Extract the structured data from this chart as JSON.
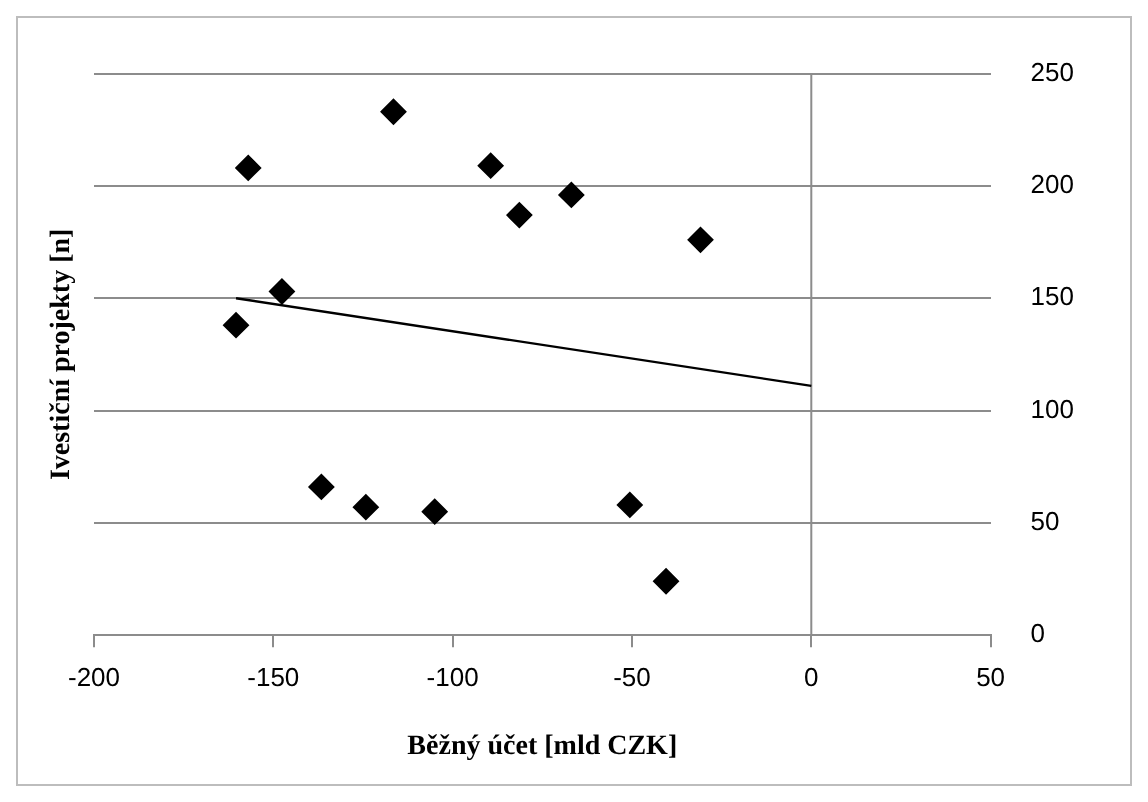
{
  "chart_data": {
    "type": "scatter",
    "xlabel": "Běžný účet [mld CZK]",
    "ylabel": "Ivestiční projekty [n]",
    "xlim": [
      -200,
      50
    ],
    "xticks": [
      -200,
      -150,
      -100,
      -50,
      0,
      50
    ],
    "ylim": [
      0,
      250
    ],
    "yticks": [
      0,
      50,
      100,
      150,
      200,
      250
    ],
    "grid": "y",
    "legend": false,
    "marker": "diamond",
    "ref_lines": [
      {
        "axis": "x",
        "value": 0,
        "color": "#8c8c8c"
      }
    ],
    "series": [
      {
        "color": "#000000",
        "x": [
          -157,
          -116.5,
          -89.4,
          -81.4,
          -66.9,
          -30.9,
          -147.6,
          -160.4,
          -136.6,
          -124.2,
          -105,
          -50.6,
          -40.5
        ],
        "values": [
          208,
          233,
          209,
          187,
          196,
          176,
          153,
          138,
          66,
          57,
          55,
          58,
          24
        ]
      },
      {
        "type": "line",
        "color": "#000000",
        "marker": "none",
        "x": [
          -160.4,
          0
        ],
        "values": [
          150,
          111
        ]
      }
    ]
  }
}
